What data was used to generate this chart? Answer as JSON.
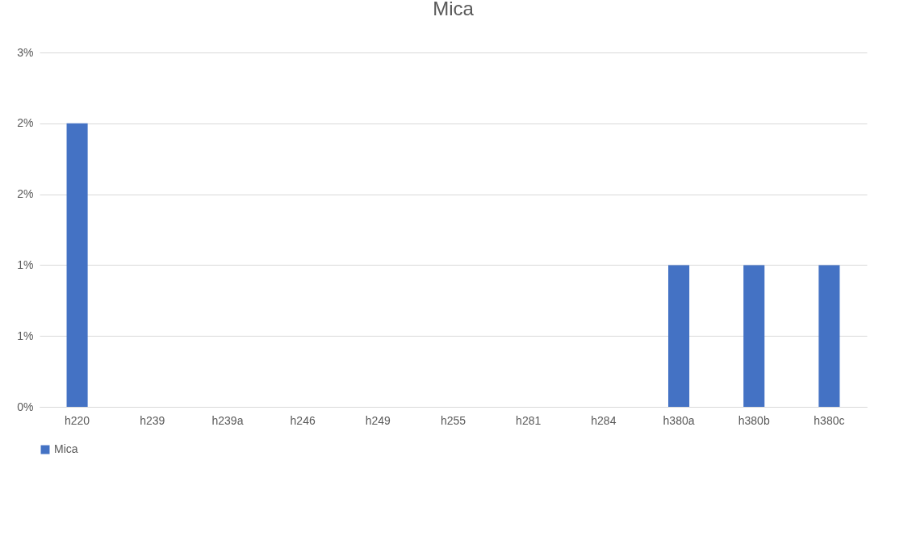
{
  "chart_data": {
    "type": "bar",
    "title": "Mica",
    "categories": [
      "h220",
      "h239",
      "h239a",
      "h246",
      "h249",
      "h255",
      "h281",
      "h284",
      "h380a",
      "h380b",
      "h380c"
    ],
    "series": [
      {
        "name": "Mica",
        "color": "#4472c4",
        "values": [
          2,
          0,
          0,
          0,
          0,
          0,
          0,
          0,
          1,
          1,
          1
        ]
      }
    ],
    "ylim": [
      0,
      2.5
    ],
    "yticks": [
      {
        "value": 0,
        "label": "0%"
      },
      {
        "value": 0.5,
        "label": "1%"
      },
      {
        "value": 1,
        "label": "1%"
      },
      {
        "value": 1.5,
        "label": "2%"
      },
      {
        "value": 2,
        "label": "2%"
      },
      {
        "value": 2.5,
        "label": "3%"
      }
    ],
    "grid": "y",
    "legend": "bottom"
  }
}
